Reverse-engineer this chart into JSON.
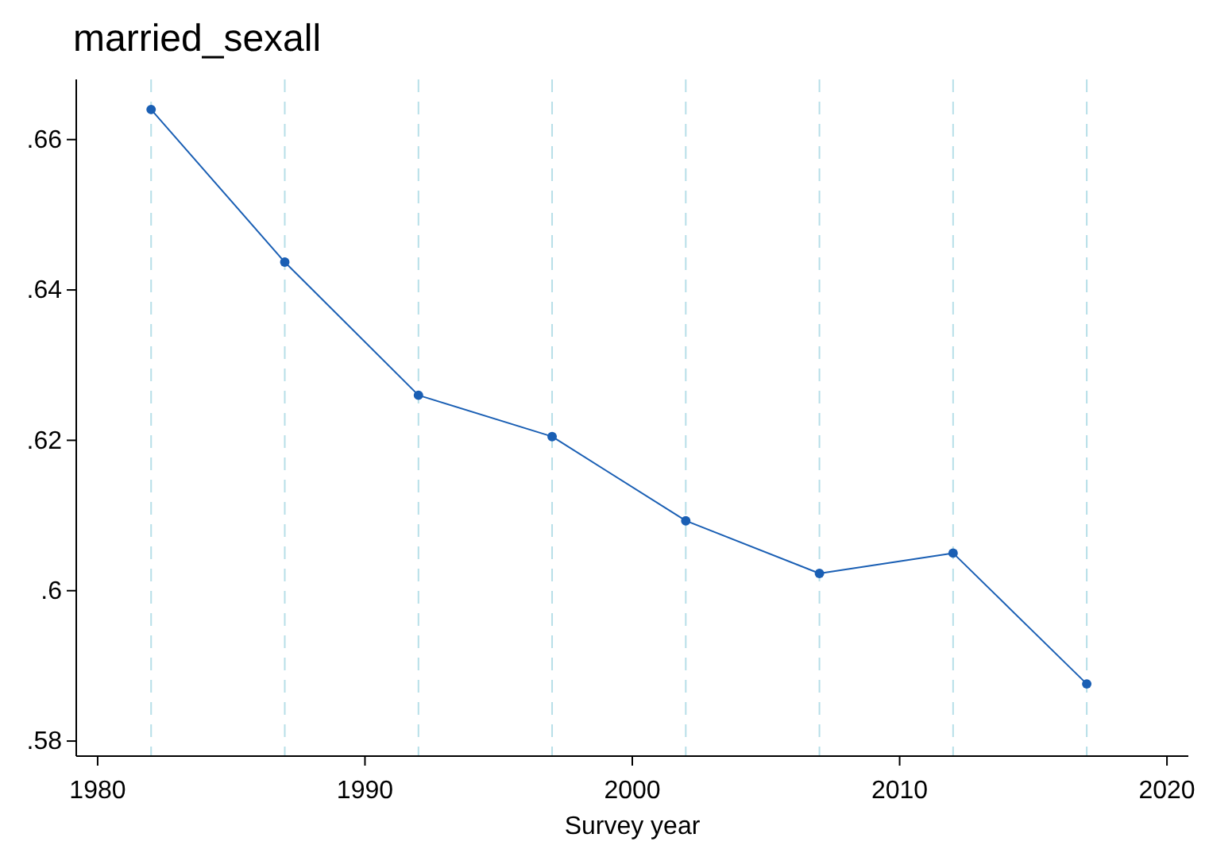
{
  "chart_data": {
    "type": "line",
    "title": "married_sexall",
    "xlabel": "Survey year",
    "x": [
      1982,
      1987,
      1992,
      1997,
      2002,
      2007,
      2012,
      2017
    ],
    "series": [
      {
        "color": "#1a5fb4",
        "values": [
          0.664,
          0.6437,
          0.626,
          0.6205,
          0.6093,
          0.6023,
          0.605,
          0.5876
        ]
      }
    ],
    "xlim": [
      1979.2,
      2020.8
    ],
    "xticks": [
      1980,
      1990,
      2000,
      2010,
      2020
    ],
    "ylim": [
      0.578,
      0.668
    ],
    "yticks": [
      {
        "value": 0.58,
        "label": ".58"
      },
      {
        "value": 0.6,
        "label": ".6"
      },
      {
        "value": 0.62,
        "label": ".62"
      },
      {
        "value": 0.64,
        "label": ".64"
      },
      {
        "value": 0.66,
        "label": ".66"
      }
    ],
    "ref_lines": [
      {
        "axis": "x",
        "value": 1982,
        "color": "#b7dfe8",
        "line_style": "dashed"
      },
      {
        "axis": "x",
        "value": 1987,
        "color": "#b7dfe8",
        "line_style": "dashed"
      },
      {
        "axis": "x",
        "value": 1992,
        "color": "#b7dfe8",
        "line_style": "dashed"
      },
      {
        "axis": "x",
        "value": 1997,
        "color": "#b7dfe8",
        "line_style": "dashed"
      },
      {
        "axis": "x",
        "value": 2002,
        "color": "#b7dfe8",
        "line_style": "dashed"
      },
      {
        "axis": "x",
        "value": 2007,
        "color": "#b7dfe8",
        "line_style": "dashed"
      },
      {
        "axis": "x",
        "value": 2012,
        "color": "#b7dfe8",
        "line_style": "dashed"
      },
      {
        "axis": "x",
        "value": 2017,
        "color": "#b7dfe8",
        "line_style": "dashed"
      }
    ],
    "grid": false,
    "marker": "circle",
    "line_style": "solid"
  }
}
